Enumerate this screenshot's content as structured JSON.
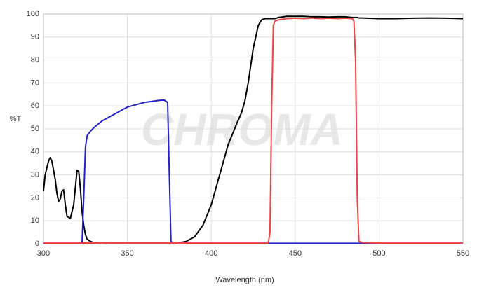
{
  "chart_data": {
    "type": "line",
    "xlabel": "Wavelength (nm)",
    "ylabel": "%T",
    "watermark": "CHROMA",
    "x": [
      300,
      301,
      302,
      303,
      304,
      305,
      307,
      308,
      309,
      310,
      311,
      312,
      313,
      314,
      316,
      318,
      320,
      321,
      322,
      323,
      324,
      325,
      326,
      328,
      330,
      335,
      340,
      345,
      350,
      355,
      360,
      365,
      370,
      372,
      374,
      375,
      376,
      377,
      380,
      385,
      390,
      395,
      400,
      405,
      410,
      415,
      418,
      420,
      422,
      425,
      428,
      430,
      432,
      434,
      435,
      436,
      437,
      438,
      440,
      445,
      450,
      455,
      460,
      465,
      470,
      475,
      480,
      484,
      485,
      486,
      487,
      488,
      490,
      500,
      510,
      520,
      530,
      540,
      550
    ],
    "series": [
      {
        "color": "#000000",
        "values": [
          23,
          30,
          33,
          36,
          37.5,
          36,
          28,
          22,
          18.5,
          19.5,
          23,
          23.5,
          17,
          12,
          11,
          17,
          32,
          31.5,
          24,
          14,
          8,
          4,
          2,
          1,
          0.5,
          0.3,
          0.2,
          0.2,
          0.2,
          0.2,
          0.2,
          0.2,
          0.2,
          0.2,
          0.2,
          0.2,
          0.2,
          0.2,
          0.3,
          1,
          3,
          8,
          17,
          30,
          43,
          52,
          57,
          62,
          70,
          85,
          95,
          97.5,
          98,
          98,
          98,
          98,
          98,
          98,
          98.5,
          99,
          99,
          99,
          98.8,
          98.8,
          98.7,
          98.8,
          98.8,
          98.5,
          98.5,
          98.5,
          98.5,
          98.3,
          98.3,
          98,
          98,
          98.2,
          98.3,
          98.2,
          98
        ]
      },
      {
        "color": "#2222cc",
        "values": [
          0.2,
          0.2,
          0.2,
          0.2,
          0.2,
          0.2,
          0.2,
          0.2,
          0.2,
          0.2,
          0.2,
          0.2,
          0.2,
          0.2,
          0.2,
          0.2,
          0.2,
          0.2,
          0.2,
          0.5,
          20,
          42,
          47,
          49,
          50.5,
          53.5,
          55.5,
          57.5,
          59.5,
          60.5,
          61.5,
          62,
          62.5,
          62.5,
          61.5,
          30,
          1,
          0.3,
          0.2,
          0.2,
          0.2,
          0.2,
          0.2,
          0.2,
          0.2,
          0.2,
          0.2,
          0.2,
          0.2,
          0.2,
          0.2,
          0.2,
          0.2,
          0.2,
          0.2,
          0.2,
          0.2,
          0.2,
          0.2,
          0.2,
          0.2,
          0.2,
          0.2,
          0.2,
          0.2,
          0.2,
          0.2,
          0.2,
          0.2,
          0.2,
          0.2,
          0.2,
          0.2,
          0.2,
          0.2,
          0.2,
          0.2,
          0.2,
          0.2
        ]
      },
      {
        "color": "#ee4444",
        "values": [
          0.3,
          0.3,
          0.3,
          0.3,
          0.3,
          0.3,
          0.3,
          0.3,
          0.3,
          0.3,
          0.3,
          0.3,
          0.3,
          0.3,
          0.3,
          0.3,
          0.3,
          0.3,
          0.3,
          0.3,
          0.3,
          0.3,
          0.3,
          0.3,
          0.3,
          0.3,
          0.3,
          0.3,
          0.3,
          0.3,
          0.3,
          0.3,
          0.3,
          0.3,
          0.3,
          0.3,
          0.3,
          0.3,
          0.3,
          0.3,
          0.3,
          0.3,
          0.3,
          0.3,
          0.3,
          0.3,
          0.3,
          0.3,
          0.3,
          0.3,
          0.3,
          0.3,
          0.3,
          0.3,
          5,
          60,
          95,
          97,
          97.5,
          98,
          98.2,
          98,
          98.3,
          98,
          98.2,
          98,
          98.2,
          98,
          97,
          80,
          20,
          1,
          0.5,
          0.3,
          0.3,
          0.3,
          0.3,
          0.3,
          0.3
        ]
      }
    ],
    "xlim": [
      300,
      550
    ],
    "xticks": [
      300,
      350,
      400,
      450,
      500,
      550
    ],
    "ylim": [
      0,
      100
    ],
    "yticks": [
      0,
      10,
      20,
      30,
      40,
      50,
      60,
      70,
      80,
      90,
      100
    ],
    "grid": true
  }
}
